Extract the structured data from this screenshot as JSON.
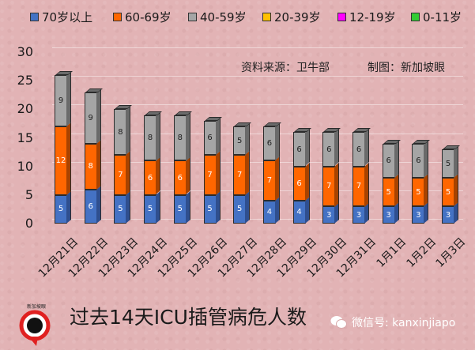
{
  "legend": [
    {
      "label": "70岁以上",
      "color": "#4472c4"
    },
    {
      "label": "60-69岁",
      "color": "#ff6600"
    },
    {
      "label": "40-59岁",
      "color": "#a5a5a5"
    },
    {
      "label": "20-39岁",
      "color": "#ffc000"
    },
    {
      "label": "12-19岁",
      "color": "#ff00ff"
    },
    {
      "label": "0-11岁",
      "color": "#33cc33"
    }
  ],
  "source": {
    "data_source": "资料来源：卫牛部",
    "made_by": "制图：新加坡眼"
  },
  "footer": {
    "title": "过去14天ICU插管病危人数",
    "wechat": "微信号: kanxinjiapo",
    "logo_text": "新加坡眼"
  },
  "chart_data": {
    "type": "bar",
    "stacked": true,
    "title": "过去14天ICU插管病危人数",
    "xlabel": "",
    "ylabel": "",
    "ylim": [
      0,
      30
    ],
    "yticks": [
      0,
      5,
      10,
      15,
      20,
      25,
      30
    ],
    "grid": true,
    "legend_position": "top",
    "categories": [
      "12月21日",
      "12月22日",
      "12月23日",
      "12月24日",
      "12月25日",
      "12月26日",
      "12月27日",
      "12月28日",
      "12月29日",
      "12月30日",
      "12月31日",
      "1月1日",
      "1月2日",
      "1月3日"
    ],
    "series": [
      {
        "name": "70岁以上",
        "color": "#4472c4",
        "values": [
          5,
          6,
          5,
          5,
          5,
          5,
          5,
          4,
          4,
          3,
          3,
          3,
          3,
          3
        ]
      },
      {
        "name": "60-69岁",
        "color": "#ff6600",
        "values": [
          12,
          8,
          7,
          6,
          6,
          7,
          7,
          7,
          6,
          7,
          7,
          5,
          5,
          5
        ]
      },
      {
        "name": "40-59岁",
        "color": "#a5a5a5",
        "values": [
          9,
          9,
          8,
          8,
          8,
          6,
          5,
          6,
          6,
          6,
          6,
          6,
          6,
          5
        ]
      },
      {
        "name": "20-39岁",
        "color": "#ffc000",
        "values": [
          0,
          0,
          0,
          0,
          0,
          0,
          0,
          0,
          0,
          0,
          0,
          0,
          0,
          0
        ]
      },
      {
        "name": "12-19岁",
        "color": "#ff00ff",
        "values": [
          0,
          0,
          0,
          0,
          0,
          0,
          0,
          0,
          0,
          0,
          0,
          0,
          0,
          0
        ]
      },
      {
        "name": "0-11岁",
        "color": "#33cc33",
        "values": [
          0,
          0,
          0,
          0,
          0,
          0,
          0,
          0,
          0,
          0,
          0,
          0,
          0,
          0
        ]
      }
    ]
  }
}
